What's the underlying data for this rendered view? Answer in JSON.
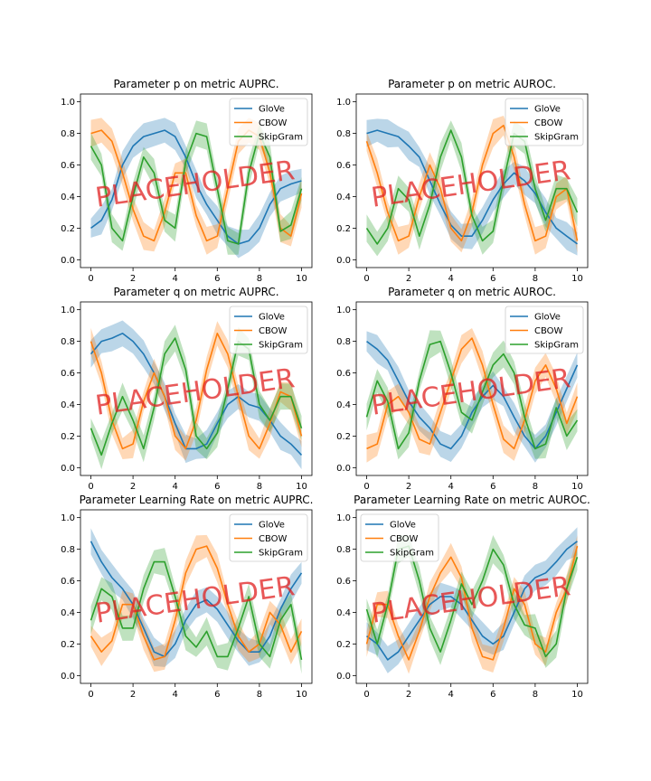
{
  "watermark_text": "PLACEHOLDER",
  "series_colors": {
    "GloVe": "#1f77b4",
    "CBOW": "#ff7f0e",
    "SkipGram": "#2ca02c"
  },
  "chart_data": [
    {
      "type": "line",
      "title": "Parameter p on metric AUPRC.",
      "xlabel": "",
      "ylabel": "",
      "xlim": [
        0,
        10
      ],
      "ylim": [
        0,
        1
      ],
      "xticks": [
        0,
        2,
        4,
        6,
        8,
        10
      ],
      "yticks": [
        0.0,
        0.2,
        0.4,
        0.6,
        0.8,
        1.0
      ],
      "legend_position": "top-right",
      "x": [
        0,
        0.5,
        1,
        1.5,
        2,
        2.5,
        3,
        3.5,
        4,
        4.5,
        5,
        5.5,
        6,
        6.5,
        7,
        7.5,
        8,
        8.5,
        9,
        9.5,
        10
      ],
      "series": [
        {
          "name": "GloVe",
          "values": [
            0.2,
            0.25,
            0.38,
            0.6,
            0.72,
            0.78,
            0.8,
            0.82,
            0.78,
            0.65,
            0.48,
            0.35,
            0.25,
            0.15,
            0.1,
            0.12,
            0.2,
            0.35,
            0.45,
            0.48,
            0.5
          ]
        },
        {
          "name": "CBOW",
          "values": [
            0.8,
            0.82,
            0.75,
            0.55,
            0.32,
            0.15,
            0.12,
            0.3,
            0.55,
            0.55,
            0.28,
            0.12,
            0.15,
            0.45,
            0.75,
            0.82,
            0.78,
            0.55,
            0.2,
            0.15,
            0.42
          ]
        },
        {
          "name": "SkipGram",
          "values": [
            0.72,
            0.6,
            0.2,
            0.12,
            0.4,
            0.65,
            0.55,
            0.25,
            0.2,
            0.62,
            0.8,
            0.78,
            0.45,
            0.12,
            0.1,
            0.55,
            0.8,
            0.65,
            0.18,
            0.22,
            0.45
          ]
        }
      ]
    },
    {
      "type": "line",
      "title": "Parameter p on metric AUROC.",
      "xlabel": "",
      "ylabel": "",
      "xlim": [
        0,
        10
      ],
      "ylim": [
        0,
        1
      ],
      "xticks": [
        0,
        2,
        4,
        6,
        8,
        10
      ],
      "yticks": [
        0.0,
        0.2,
        0.4,
        0.6,
        0.8,
        1.0
      ],
      "legend_position": "top-right",
      "x": [
        0,
        0.5,
        1,
        1.5,
        2,
        2.5,
        3,
        3.5,
        4,
        4.5,
        5,
        5.5,
        6,
        6.5,
        7,
        7.5,
        8,
        8.5,
        9,
        9.5,
        10
      ],
      "series": [
        {
          "name": "GloVe",
          "values": [
            0.8,
            0.82,
            0.8,
            0.78,
            0.72,
            0.65,
            0.5,
            0.35,
            0.22,
            0.15,
            0.15,
            0.25,
            0.38,
            0.48,
            0.55,
            0.5,
            0.42,
            0.3,
            0.2,
            0.15,
            0.1
          ]
        },
        {
          "name": "CBOW",
          "values": [
            0.75,
            0.55,
            0.3,
            0.12,
            0.15,
            0.4,
            0.6,
            0.45,
            0.2,
            0.12,
            0.3,
            0.6,
            0.8,
            0.85,
            0.65,
            0.35,
            0.12,
            0.15,
            0.4,
            0.45,
            0.12
          ]
        },
        {
          "name": "SkipGram",
          "values": [
            0.2,
            0.1,
            0.2,
            0.45,
            0.38,
            0.15,
            0.35,
            0.65,
            0.82,
            0.65,
            0.28,
            0.12,
            0.18,
            0.5,
            0.8,
            0.75,
            0.45,
            0.25,
            0.45,
            0.45,
            0.3
          ]
        }
      ]
    },
    {
      "type": "line",
      "title": "Parameter q on metric AUPRC.",
      "xlabel": "",
      "ylabel": "",
      "xlim": [
        0,
        10
      ],
      "ylim": [
        0,
        1
      ],
      "xticks": [
        0,
        2,
        4,
        6,
        8,
        10
      ],
      "yticks": [
        0.0,
        0.2,
        0.4,
        0.6,
        0.8,
        1.0
      ],
      "legend_position": "top-right",
      "x": [
        0,
        0.5,
        1,
        1.5,
        2,
        2.5,
        3,
        3.5,
        4,
        4.5,
        5,
        5.5,
        6,
        6.5,
        7,
        7.5,
        8,
        8.5,
        9,
        9.5,
        10
      ],
      "series": [
        {
          "name": "GloVe",
          "values": [
            0.72,
            0.8,
            0.82,
            0.85,
            0.8,
            0.72,
            0.6,
            0.45,
            0.28,
            0.12,
            0.12,
            0.15,
            0.28,
            0.4,
            0.45,
            0.4,
            0.38,
            0.3,
            0.2,
            0.15,
            0.08
          ]
        },
        {
          "name": "CBOW",
          "values": [
            0.8,
            0.6,
            0.3,
            0.12,
            0.15,
            0.42,
            0.6,
            0.45,
            0.2,
            0.12,
            0.3,
            0.62,
            0.85,
            0.72,
            0.45,
            0.2,
            0.12,
            0.28,
            0.48,
            0.45,
            0.2
          ]
        },
        {
          "name": "SkipGram",
          "values": [
            0.25,
            0.08,
            0.28,
            0.45,
            0.3,
            0.12,
            0.38,
            0.72,
            0.82,
            0.62,
            0.2,
            0.12,
            0.22,
            0.5,
            0.8,
            0.75,
            0.4,
            0.3,
            0.45,
            0.45,
            0.25
          ]
        }
      ]
    },
    {
      "type": "line",
      "title": "Parameter q on metric AUROC.",
      "xlabel": "",
      "ylabel": "",
      "xlim": [
        0,
        10
      ],
      "ylim": [
        0,
        1
      ],
      "xticks": [
        0,
        2,
        4,
        6,
        8,
        10
      ],
      "yticks": [
        0.0,
        0.2,
        0.4,
        0.6,
        0.8,
        1.0
      ],
      "legend_position": "top-right",
      "x": [
        0,
        0.5,
        1,
        1.5,
        2,
        2.5,
        3,
        3.5,
        4,
        4.5,
        5,
        5.5,
        6,
        6.5,
        7,
        7.5,
        8,
        8.5,
        9,
        9.5,
        10
      ],
      "series": [
        {
          "name": "GloVe",
          "values": [
            0.8,
            0.75,
            0.68,
            0.55,
            0.42,
            0.32,
            0.25,
            0.15,
            0.12,
            0.2,
            0.35,
            0.45,
            0.52,
            0.45,
            0.32,
            0.2,
            0.12,
            0.2,
            0.35,
            0.5,
            0.65
          ]
        },
        {
          "name": "CBOW",
          "values": [
            0.12,
            0.15,
            0.4,
            0.45,
            0.35,
            0.18,
            0.15,
            0.35,
            0.55,
            0.75,
            0.82,
            0.65,
            0.4,
            0.18,
            0.12,
            0.3,
            0.55,
            0.65,
            0.5,
            0.28,
            0.45
          ]
        },
        {
          "name": "SkipGram",
          "values": [
            0.32,
            0.55,
            0.42,
            0.12,
            0.22,
            0.55,
            0.78,
            0.8,
            0.6,
            0.35,
            0.3,
            0.48,
            0.65,
            0.72,
            0.6,
            0.32,
            0.12,
            0.15,
            0.38,
            0.2,
            0.3
          ]
        }
      ]
    },
    {
      "type": "line",
      "title": "Parameter Learning Rate on metric AUPRC.",
      "xlabel": "",
      "ylabel": "",
      "xlim": [
        0,
        10
      ],
      "ylim": [
        0,
        1
      ],
      "xticks": [
        0,
        2,
        4,
        6,
        8,
        10
      ],
      "yticks": [
        0.0,
        0.2,
        0.4,
        0.6,
        0.8,
        1.0
      ],
      "legend_position": "top-right",
      "x": [
        0,
        0.5,
        1,
        1.5,
        2,
        2.5,
        3,
        3.5,
        4,
        4.5,
        5,
        5.5,
        6,
        6.5,
        7,
        7.5,
        8,
        8.5,
        9,
        9.5,
        10
      ],
      "series": [
        {
          "name": "GloVe",
          "values": [
            0.85,
            0.72,
            0.62,
            0.55,
            0.45,
            0.3,
            0.15,
            0.12,
            0.2,
            0.35,
            0.45,
            0.48,
            0.42,
            0.32,
            0.22,
            0.15,
            0.15,
            0.25,
            0.42,
            0.55,
            0.65
          ]
        },
        {
          "name": "CBOW",
          "values": [
            0.25,
            0.15,
            0.22,
            0.45,
            0.45,
            0.25,
            0.1,
            0.12,
            0.35,
            0.65,
            0.8,
            0.82,
            0.68,
            0.45,
            0.25,
            0.15,
            0.2,
            0.4,
            0.32,
            0.15,
            0.28
          ]
        },
        {
          "name": "SkipGram",
          "values": [
            0.35,
            0.55,
            0.5,
            0.3,
            0.3,
            0.55,
            0.72,
            0.72,
            0.5,
            0.25,
            0.18,
            0.28,
            0.12,
            0.12,
            0.3,
            0.5,
            0.2,
            0.12,
            0.35,
            0.45,
            0.1
          ]
        }
      ]
    },
    {
      "type": "line",
      "title": "Parameter Learning Rate on metric AUROC.",
      "xlabel": "",
      "ylabel": "",
      "xlim": [
        0,
        10
      ],
      "ylim": [
        0,
        1
      ],
      "xticks": [
        0,
        2,
        4,
        6,
        8,
        10
      ],
      "yticks": [
        0.0,
        0.2,
        0.4,
        0.6,
        0.8,
        1.0
      ],
      "legend_position": "top-left",
      "x": [
        0,
        0.5,
        1,
        1.5,
        2,
        2.5,
        3,
        3.5,
        4,
        4.5,
        5,
        5.5,
        6,
        6.5,
        7,
        7.5,
        8,
        8.5,
        9,
        9.5,
        10
      ],
      "series": [
        {
          "name": "GloVe",
          "values": [
            0.25,
            0.2,
            0.1,
            0.15,
            0.25,
            0.35,
            0.45,
            0.5,
            0.5,
            0.45,
            0.35,
            0.25,
            0.2,
            0.25,
            0.4,
            0.55,
            0.62,
            0.65,
            0.72,
            0.8,
            0.85
          ]
        },
        {
          "name": "CBOW",
          "values": [
            0.2,
            0.45,
            0.45,
            0.25,
            0.1,
            0.28,
            0.5,
            0.65,
            0.75,
            0.62,
            0.3,
            0.12,
            0.1,
            0.3,
            0.55,
            0.45,
            0.2,
            0.15,
            0.4,
            0.55,
            0.82
          ]
        },
        {
          "name": "SkipGram",
          "values": [
            0.42,
            0.2,
            0.45,
            0.8,
            0.82,
            0.6,
            0.3,
            0.15,
            0.35,
            0.58,
            0.45,
            0.6,
            0.8,
            0.7,
            0.45,
            0.32,
            0.3,
            0.12,
            0.2,
            0.55,
            0.75
          ]
        }
      ]
    }
  ]
}
